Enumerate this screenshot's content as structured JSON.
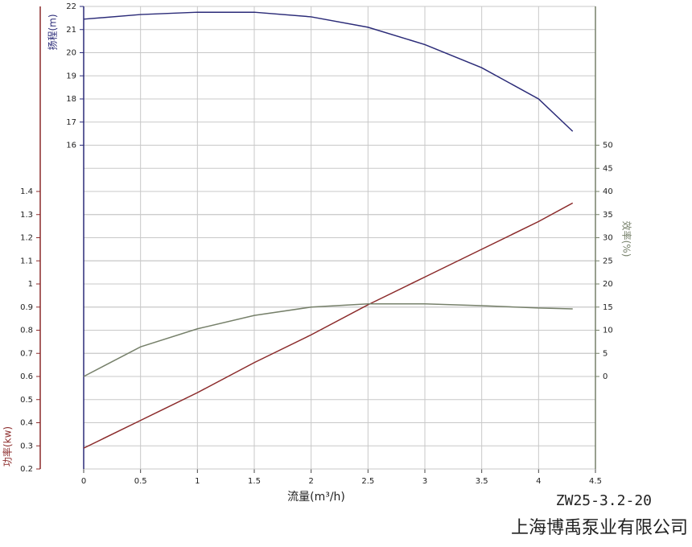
{
  "chart_data": {
    "type": "line",
    "x_label": "流量(m³/h)",
    "model": "ZW25-3.2-20",
    "company": "上海博禹泵业有限公司",
    "x": [
      0,
      0.5,
      1,
      1.5,
      2,
      2.5,
      3,
      3.5,
      4,
      4.3
    ],
    "xlim": [
      0,
      4.5
    ],
    "xticks": [
      0,
      0.5,
      1,
      1.5,
      2,
      2.5,
      3,
      3.5,
      4,
      4.5
    ],
    "grid": true,
    "series": [
      {
        "name": "扬程(m)",
        "color": "#2b2b78",
        "ylim": [
          2,
          22
        ],
        "yticks": [
          16,
          17,
          18,
          19,
          20,
          21,
          22
        ],
        "values": [
          21.45,
          21.65,
          21.75,
          21.75,
          21.55,
          21.1,
          20.35,
          19.35,
          18.0,
          16.6
        ]
      },
      {
        "name": "功率(kw)",
        "color": "#8b2a2a",
        "ylim": [
          0.2,
          2.2
        ],
        "yticks": [
          0.2,
          0.3,
          0.4,
          0.5,
          0.6,
          0.7,
          0.8,
          0.9,
          1,
          1.1,
          1.2,
          1.3,
          1.4
        ],
        "values": [
          0.29,
          0.41,
          0.53,
          0.66,
          0.78,
          0.91,
          1.03,
          1.15,
          1.27,
          1.35
        ]
      },
      {
        "name": "效率(%)",
        "color": "#76806a",
        "ylim": [
          -20,
          80
        ],
        "yticks": [
          0,
          5,
          10,
          15,
          20,
          25,
          30,
          35,
          40,
          45,
          50
        ],
        "values": [
          0,
          6.4,
          10.3,
          13.2,
          15.0,
          15.7,
          15.7,
          15.3,
          14.8,
          14.6
        ]
      }
    ]
  }
}
